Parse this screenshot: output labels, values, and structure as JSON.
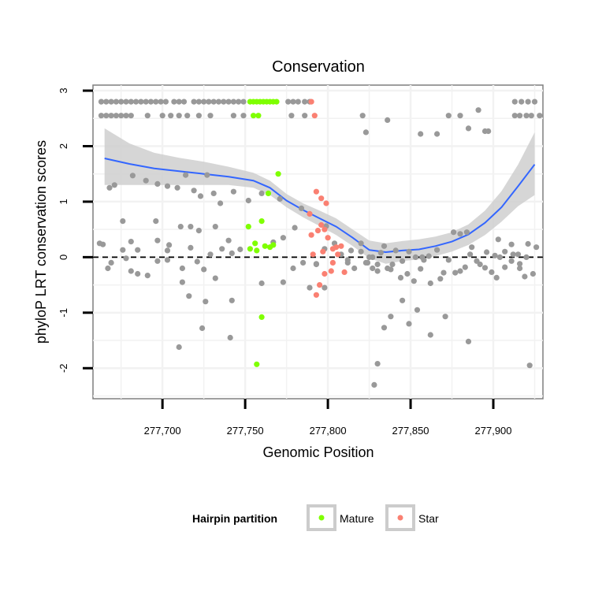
{
  "chart_data": {
    "type": "scatter",
    "title": "Conservation",
    "xlabel": "Genomic Position",
    "ylabel": "phyloP LRT conservation scores",
    "xlim": [
      277658,
      277930
    ],
    "ylim": [
      -2.55,
      3.1
    ],
    "x_ticks": [
      277700,
      277750,
      277800,
      277850,
      277900
    ],
    "x_tick_labels": [
      "277,700",
      "277,750",
      "277,800",
      "277,850",
      "277,900"
    ],
    "y_ticks": [
      -2,
      -1,
      0,
      1,
      2,
      3
    ],
    "y_tick_labels": [
      "-2",
      "-1",
      "0",
      "1",
      "2",
      "3"
    ],
    "grid": true,
    "reference_line": {
      "y": 0,
      "style": "dashed"
    },
    "legend": {
      "title": "Hairpin partition",
      "placement": "bottom",
      "entries": [
        {
          "label": "Mature",
          "color": "#7fff00"
        },
        {
          "label": "Star",
          "color": "#fa8072"
        }
      ]
    },
    "colors": {
      "other": "#999999",
      "mature": "#7fff00",
      "star": "#fa8072",
      "smooth": "#3366ff",
      "band": "#cfcfcf"
    },
    "series": [
      {
        "group": "other",
        "x": [
          277663,
          277666,
          277669,
          277672,
          277675,
          277678,
          277681,
          277684,
          277687,
          277690,
          277693,
          277696,
          277699,
          277702,
          277707,
          277710,
          277713,
          277719,
          277722,
          277725,
          277728,
          277731,
          277734,
          277737,
          277740,
          277743,
          277746,
          277749,
          277776,
          277779,
          277782,
          277786,
          277789,
          277663,
          277666,
          277669,
          277672,
          277675,
          277678,
          277681,
          277691,
          277700,
          277705,
          277710,
          277715,
          277722,
          277729,
          277743,
          277749,
          277778,
          277786,
          277821,
          277823,
          277836,
          277856,
          277866,
          277873,
          277880,
          277885,
          277891,
          277895,
          277897,
          277913,
          277916,
          277920,
          277923,
          277913,
          277917,
          277921,
          277925,
          277928,
          277668,
          277671,
          277682,
          277690,
          277697,
          277703,
          277709,
          277714,
          277719,
          277723,
          277727,
          277731,
          277735,
          277743,
          277752,
          277662,
          277676,
          277681,
          277696,
          277703,
          277711,
          277717,
          277722,
          277732,
          277740,
          277760,
          277771,
          277784,
          277798,
          277804,
          277664,
          277667,
          277676,
          277678,
          277685,
          277691,
          277697,
          277704,
          277712,
          277717,
          277725,
          277732,
          277742,
          277747,
          277760,
          277767,
          277773,
          277780,
          277789,
          277793,
          277799,
          277812,
          277814,
          277820,
          277824,
          277827,
          277830,
          277834,
          277838,
          277841,
          277845,
          277849,
          277853,
          277858,
          277861,
          277866,
          277870,
          277876,
          277883,
          277887,
          277892,
          277896,
          277901,
          277904,
          277911,
          277915,
          277921,
          277926,
          277669,
          277681,
          277685,
          277697,
          277703,
          277712,
          277716,
          277721,
          277729,
          277736,
          277773,
          277779,
          277785,
          277793,
          277798,
          277808,
          277812,
          277816,
          277823,
          277827,
          277830,
          277836,
          277844,
          277848,
          277852,
          277856,
          277862,
          277868,
          277873,
          277877,
          277880,
          277884,
          277890,
          277895,
          277899,
          277902,
          277907,
          277911,
          277916,
          277919,
          277924,
          277710,
          277724,
          277726,
          277741,
          277742,
          277828,
          277830,
          277834,
          277838,
          277845,
          277849,
          277854,
          277862,
          277871,
          277885,
          277922,
          277820,
          277825,
          277832,
          277839,
          277857,
          277880,
          277886,
          277903,
          277907,
          277912,
          277916,
          277920
        ],
        "y": [
          2.8,
          2.8,
          2.8,
          2.8,
          2.8,
          2.8,
          2.8,
          2.8,
          2.8,
          2.8,
          2.8,
          2.8,
          2.8,
          2.8,
          2.8,
          2.8,
          2.8,
          2.8,
          2.8,
          2.8,
          2.8,
          2.8,
          2.8,
          2.8,
          2.8,
          2.8,
          2.8,
          2.8,
          2.8,
          2.8,
          2.8,
          2.8,
          2.8,
          2.55,
          2.55,
          2.55,
          2.55,
          2.55,
          2.55,
          2.55,
          2.55,
          2.55,
          2.55,
          2.55,
          2.55,
          2.55,
          2.55,
          2.55,
          2.55,
          2.55,
          2.55,
          2.55,
          2.25,
          2.47,
          2.22,
          2.22,
          2.55,
          2.55,
          2.32,
          2.65,
          2.27,
          2.27,
          2.55,
          2.55,
          2.55,
          2.55,
          2.8,
          2.8,
          2.8,
          2.8,
          2.55,
          1.25,
          1.3,
          1.47,
          1.38,
          1.32,
          1.28,
          1.25,
          1.48,
          1.2,
          1.1,
          1.48,
          1.15,
          0.97,
          1.18,
          1.02,
          0.25,
          0.65,
          0.28,
          0.65,
          0.12,
          0.55,
          0.55,
          0.48,
          0.55,
          0.3,
          1.15,
          1.05,
          0.88,
          0.15,
          0.25,
          0.23,
          -0.2,
          0.13,
          -0.02,
          0.13,
          -0.33,
          -0.07,
          0.22,
          -0.2,
          0.17,
          -0.22,
          -0.38,
          0.07,
          0.14,
          -0.47,
          0.27,
          0.35,
          0.53,
          -0.55,
          -0.13,
          0.56,
          -0.05,
          0.12,
          0.25,
          -0.1,
          -0.2,
          -0.13,
          0.2,
          -0.22,
          0.12,
          -0.07,
          0.1,
          0.0,
          -0.05,
          0.02,
          0.13,
          -0.28,
          0.45,
          -0.18,
          0.18,
          -0.13,
          0.09,
          0.03,
          0.0,
          0.23,
          0.05,
          0.24,
          0.18,
          -0.1,
          -0.25,
          -0.3,
          0.3,
          -0.05,
          -0.45,
          -0.7,
          -0.08,
          0.05,
          0.15,
          -0.45,
          -0.2,
          -0.1,
          -0.12,
          -0.55,
          0.05,
          -0.1,
          -0.2,
          -0.1,
          0.0,
          -0.25,
          -0.2,
          -0.37,
          -0.3,
          -0.43,
          -0.21,
          -0.47,
          -0.39,
          -0.05,
          -0.28,
          0.42,
          0.45,
          -0.07,
          -0.19,
          -0.27,
          -0.37,
          -0.18,
          -0.07,
          -0.2,
          -0.35,
          -0.3,
          -1.62,
          -1.28,
          -0.8,
          -1.45,
          -0.78,
          -2.3,
          -1.92,
          -1.27,
          -1.07,
          -0.78,
          -1.2,
          -0.95,
          -1.4,
          -1.07,
          -1.52,
          -1.95,
          0.1,
          0.0,
          0.08,
          -0.13,
          0.0,
          -0.25,
          0.05,
          0.32,
          0.1,
          0.05,
          -0.12,
          0.0
        ]
      },
      {
        "group": "mature",
        "name": "Mature",
        "x": [
          277753,
          277755,
          277757,
          277759,
          277761,
          277763,
          277765,
          277767,
          277769,
          277755,
          277758,
          277752,
          277756,
          277760,
          277764,
          277770,
          277753,
          277757,
          277762,
          277765,
          277767,
          277760,
          277757
        ],
        "y": [
          2.8,
          2.8,
          2.8,
          2.8,
          2.8,
          2.8,
          2.8,
          2.8,
          2.8,
          2.55,
          2.55,
          0.55,
          0.25,
          0.65,
          1.15,
          1.5,
          0.15,
          0.12,
          0.2,
          0.18,
          0.22,
          -1.08,
          -1.93
        ],
        "bar_slider": []
      },
      {
        "group": "star",
        "name": "Star",
        "x": [
          277790,
          277792,
          277789,
          277793,
          277796,
          277799,
          277796,
          277790,
          277794,
          277798,
          277800,
          277803,
          277805,
          277803,
          277802,
          277798,
          277795,
          277793,
          277808,
          277806,
          277810,
          277791,
          277797
        ],
        "y": [
          2.8,
          2.55,
          0.78,
          1.18,
          1.06,
          0.97,
          0.58,
          0.4,
          0.48,
          0.5,
          0.35,
          0.15,
          0.18,
          -0.1,
          -0.25,
          -0.3,
          -0.5,
          -0.68,
          0.2,
          0.05,
          -0.27,
          0.05,
          0.1
        ]
      }
    ],
    "smooth": {
      "x": [
        277665,
        277680,
        277695,
        277710,
        277725,
        277740,
        277755,
        277765,
        277775,
        277785,
        277795,
        277805,
        277815,
        277825,
        277835,
        277845,
        277855,
        277865,
        277875,
        277885,
        277895,
        277905,
        277915,
        277925
      ],
      "y": [
        1.78,
        1.68,
        1.6,
        1.55,
        1.5,
        1.45,
        1.38,
        1.25,
        1.02,
        0.85,
        0.7,
        0.55,
        0.35,
        0.13,
        0.09,
        0.12,
        0.14,
        0.2,
        0.28,
        0.41,
        0.62,
        0.9,
        1.28,
        1.67
      ],
      "lower": [
        1.3,
        1.3,
        1.3,
        1.3,
        1.3,
        1.3,
        1.25,
        1.12,
        0.9,
        0.72,
        0.56,
        0.4,
        0.2,
        -0.02,
        -0.12,
        -0.07,
        -0.04,
        0.02,
        0.1,
        0.22,
        0.4,
        0.64,
        0.92,
        1.12
      ],
      "upper": [
        2.32,
        2.05,
        1.88,
        1.79,
        1.72,
        1.63,
        1.52,
        1.38,
        1.14,
        0.97,
        0.84,
        0.7,
        0.5,
        0.3,
        0.25,
        0.29,
        0.32,
        0.37,
        0.45,
        0.59,
        0.84,
        1.19,
        1.67,
        2.25
      ]
    }
  }
}
